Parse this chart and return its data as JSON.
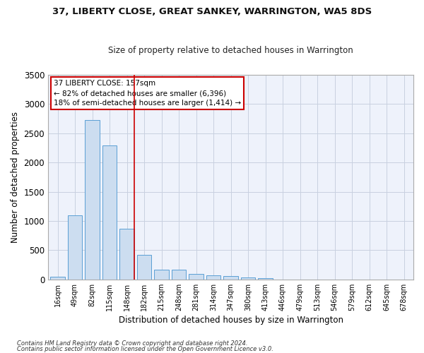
{
  "title": "37, LIBERTY CLOSE, GREAT SANKEY, WARRINGTON, WA5 8DS",
  "subtitle": "Size of property relative to detached houses in Warrington",
  "xlabel": "Distribution of detached houses by size in Warrington",
  "ylabel": "Number of detached properties",
  "bar_color": "#ccddf0",
  "bar_edge_color": "#5a9fd4",
  "background_color": "#eef2fb",
  "grid_color": "#c8d0e0",
  "categories": [
    "16sqm",
    "49sqm",
    "82sqm",
    "115sqm",
    "148sqm",
    "182sqm",
    "215sqm",
    "248sqm",
    "281sqm",
    "314sqm",
    "347sqm",
    "380sqm",
    "413sqm",
    "446sqm",
    "479sqm",
    "513sqm",
    "546sqm",
    "579sqm",
    "612sqm",
    "645sqm",
    "678sqm"
  ],
  "values": [
    50,
    1100,
    2730,
    2290,
    870,
    420,
    170,
    165,
    95,
    65,
    55,
    30,
    25,
    0,
    0,
    0,
    0,
    0,
    0,
    0,
    0
  ],
  "ylim": [
    0,
    3500
  ],
  "yticks": [
    0,
    500,
    1000,
    1500,
    2000,
    2500,
    3000,
    3500
  ],
  "vline_x": 4.42,
  "vline_color": "#cc0000",
  "annotation_title": "37 LIBERTY CLOSE: 157sqm",
  "annotation_line1": "← 82% of detached houses are smaller (6,396)",
  "annotation_line2": "18% of semi-detached houses are larger (1,414) →",
  "annotation_box_color": "#cc0000",
  "footer_line1": "Contains HM Land Registry data © Crown copyright and database right 2024.",
  "footer_line2": "Contains public sector information licensed under the Open Government Licence v3.0."
}
